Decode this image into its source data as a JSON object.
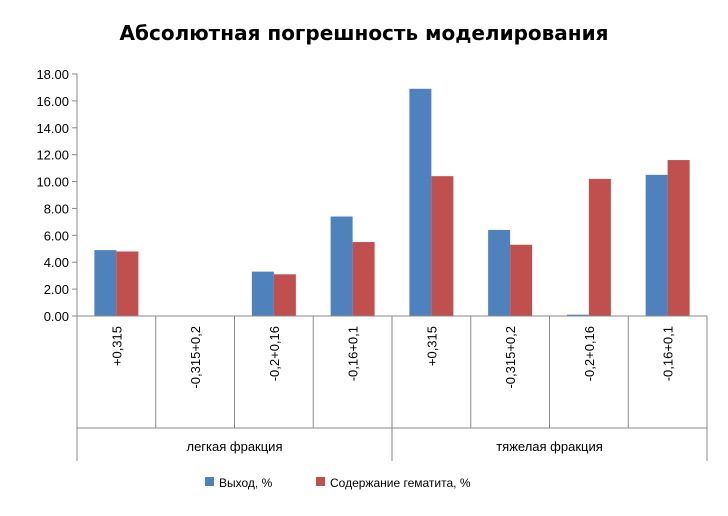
{
  "chart_data": {
    "type": "bar",
    "title": "Абсолютная погрешность моделирования",
    "xlabel": "",
    "ylabel": "",
    "ylim": [
      0,
      18
    ],
    "yticks": [
      "0.00",
      "2.00",
      "4.00",
      "6.00",
      "8.00",
      "10.00",
      "12.00",
      "14.00",
      "16.00",
      "18.00"
    ],
    "grid": false,
    "legend_position": "bottom",
    "categories": [
      "+0,315",
      "-0,315+0,2",
      "-0,2+0,16",
      "-0,16+0,1",
      "+0,315",
      "-0,315+0,2",
      "-0,2+0,16",
      "-0,16+0,1"
    ],
    "groups": [
      {
        "label": "легкая фракция",
        "count": 4
      },
      {
        "label": "тяжелая фракция",
        "count": 4
      }
    ],
    "series": [
      {
        "name": "Выход, %",
        "color": "#4f81bd",
        "values": [
          4.9,
          0,
          3.3,
          7.4,
          16.9,
          6.4,
          0.1,
          10.5
        ]
      },
      {
        "name": "Содержание  гематита, %",
        "color": "#c0504d",
        "values": [
          4.8,
          0,
          3.1,
          5.5,
          10.4,
          5.3,
          10.2,
          11.6
        ]
      }
    ]
  }
}
